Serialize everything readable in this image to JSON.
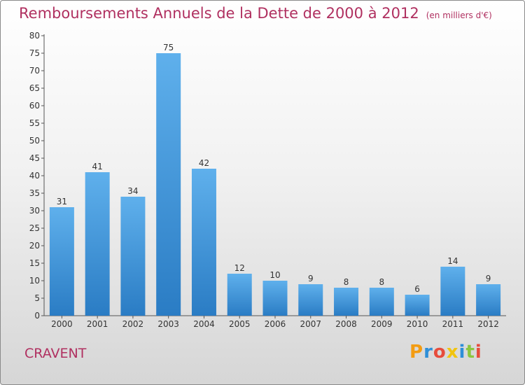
{
  "header": {
    "title": "Remboursements Annuels de la Dette de 2000 à 2012",
    "subtitle": "(en milliers d'€)"
  },
  "footer": {
    "commune": "CRAVENT",
    "logo_letters": [
      "P",
      "r",
      "o",
      "x",
      "i",
      "t",
      "i"
    ],
    "logo_colors": [
      "#f39c12",
      "#2e8fd8",
      "#e74c3c",
      "#f1c40f",
      "#2e8fd8",
      "#8cc63f",
      "#e74c3c"
    ]
  },
  "colors": {
    "accent": "#b03060",
    "bar": "#3f95d8"
  },
  "chart_data": {
    "type": "bar",
    "categories": [
      "2000",
      "2001",
      "2002",
      "2003",
      "2004",
      "2005",
      "2006",
      "2007",
      "2008",
      "2009",
      "2010",
      "2011",
      "2012"
    ],
    "values": [
      31,
      41,
      34,
      75,
      42,
      12,
      10,
      9,
      8,
      8,
      6,
      14,
      9
    ],
    "title": "Remboursements Annuels de la Dette de 2000 à 2012",
    "subtitle": "(en milliers d'€)",
    "xlabel": "",
    "ylabel": "",
    "ylim": [
      0,
      80
    ],
    "yticks": [
      0,
      5,
      10,
      15,
      20,
      25,
      30,
      35,
      40,
      45,
      50,
      55,
      60,
      65,
      70,
      75,
      80
    ],
    "grid": false,
    "data_labels": true
  }
}
